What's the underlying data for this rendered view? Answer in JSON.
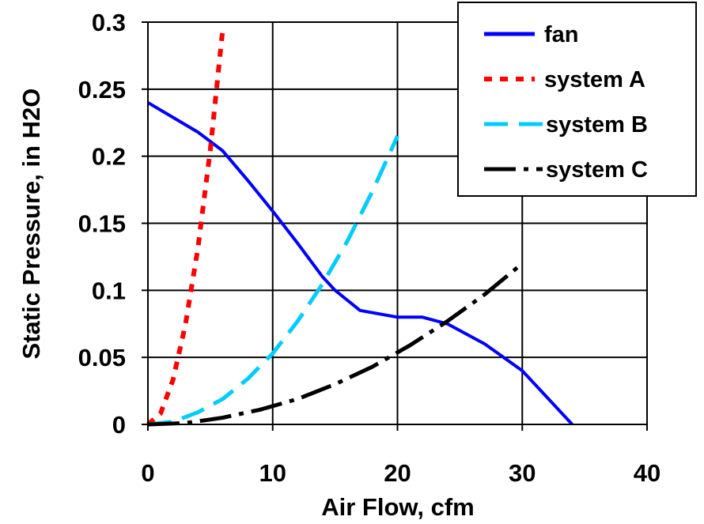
{
  "chart_data": {
    "type": "line",
    "title": "",
    "xlabel": "Air Flow, cfm",
    "ylabel": "Static Pressure, in H2O",
    "xlim": [
      0,
      40
    ],
    "ylim": [
      0,
      0.3
    ],
    "xticks": [
      0,
      10,
      20,
      30,
      40
    ],
    "xtick_labels": [
      "0",
      "10",
      "20",
      "30",
      "40"
    ],
    "yticks": [
      0,
      0.05,
      0.1,
      0.15,
      0.2,
      0.25,
      0.3
    ],
    "ytick_labels": [
      "0",
      "0.05",
      "0.1",
      "0.15",
      "0.2",
      "0.25",
      "0.3"
    ],
    "grid": true,
    "legend_position": "top-right",
    "series": [
      {
        "name": "fan",
        "color": "#0000ff",
        "style": "solid",
        "x": [
          0,
          2,
          4,
          6,
          8,
          10,
          12,
          14,
          15,
          17,
          20,
          22,
          24,
          27,
          30,
          34
        ],
        "y": [
          0.24,
          0.229,
          0.218,
          0.204,
          0.182,
          0.159,
          0.135,
          0.11,
          0.1,
          0.085,
          0.08,
          0.08,
          0.075,
          0.06,
          0.04,
          0
        ]
      },
      {
        "name": "system A",
        "color": "#ff0000",
        "style": "dotted",
        "x": [
          0,
          1,
          2,
          3,
          4,
          5,
          6
        ],
        "y": [
          0,
          0.008,
          0.033,
          0.074,
          0.131,
          0.205,
          0.295
        ]
      },
      {
        "name": "system B",
        "color": "#00ccff",
        "style": "dashed",
        "x": [
          0,
          2,
          4,
          6,
          8,
          10,
          12,
          14,
          16,
          18,
          20
        ],
        "y": [
          0,
          0.002,
          0.009,
          0.019,
          0.034,
          0.053,
          0.077,
          0.105,
          0.137,
          0.174,
          0.215
        ]
      },
      {
        "name": "system C",
        "color": "#000000",
        "style": "dashdot",
        "x": [
          0,
          3,
          6,
          9,
          12,
          15,
          18,
          21,
          24,
          27,
          30
        ],
        "y": [
          0,
          0.001,
          0.005,
          0.011,
          0.019,
          0.03,
          0.043,
          0.059,
          0.077,
          0.097,
          0.12
        ]
      }
    ]
  }
}
